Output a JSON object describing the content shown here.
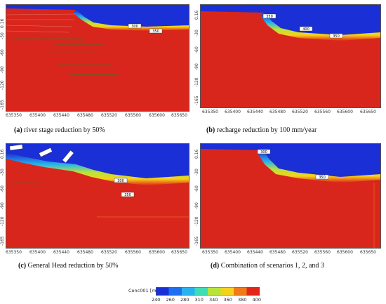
{
  "panels": [
    {
      "id": "a",
      "caption_letter": "(a)",
      "caption_text": " river stage reduction by 50%",
      "contour_labels": [
        "300",
        "350"
      ],
      "yticks": [
        "0.16",
        "-30",
        "-60",
        "-90",
        "-120",
        "-165"
      ],
      "xticks": [
        "635350",
        "635400",
        "635440",
        "635480",
        "635520",
        "635560",
        "635600",
        "635650"
      ]
    },
    {
      "id": "b",
      "caption_letter": "(b)",
      "caption_text": " recharge reduction by 100 mm/year",
      "contour_labels": [
        "350",
        "400",
        "350"
      ],
      "yticks": [
        "0.16",
        "-30",
        "-60",
        "-90",
        "-120",
        "-165"
      ],
      "xticks": [
        "635350",
        "635400",
        "635440",
        "635480",
        "635520",
        "635560",
        "635600",
        "635650"
      ]
    },
    {
      "id": "c",
      "caption_letter": "(c)",
      "caption_text": " General Head reduction by 50%",
      "contour_labels": [
        "300",
        "350"
      ],
      "yticks": [
        "0.16",
        "-30",
        "-60",
        "-90",
        "-120",
        "-165"
      ],
      "xticks": [
        "635350",
        "635400",
        "635440",
        "635480",
        "635520",
        "635560",
        "635600",
        "635650"
      ]
    },
    {
      "id": "d",
      "caption_letter": "(d)",
      "caption_text": " Combination of scenarios 1, 2, and 3",
      "contour_labels": [
        "300",
        "350"
      ],
      "yticks": [
        "0.16",
        "-30",
        "-60",
        "-90",
        "-120",
        "-165"
      ],
      "xticks": [
        "635350",
        "635400",
        "635440",
        "635480",
        "635520",
        "635560",
        "635600",
        "635650"
      ]
    }
  ],
  "legend": {
    "title": "Conc001 [mg/L]",
    "ticks": [
      "240",
      "260",
      "280",
      "310",
      "340",
      "360",
      "380",
      "400"
    ],
    "colors": [
      "#1b2fd6",
      "#1e6fee",
      "#27b3ee",
      "#3fdcb5",
      "#b8e43a",
      "#f5d21a",
      "#f07a18",
      "#e2261c"
    ]
  }
}
